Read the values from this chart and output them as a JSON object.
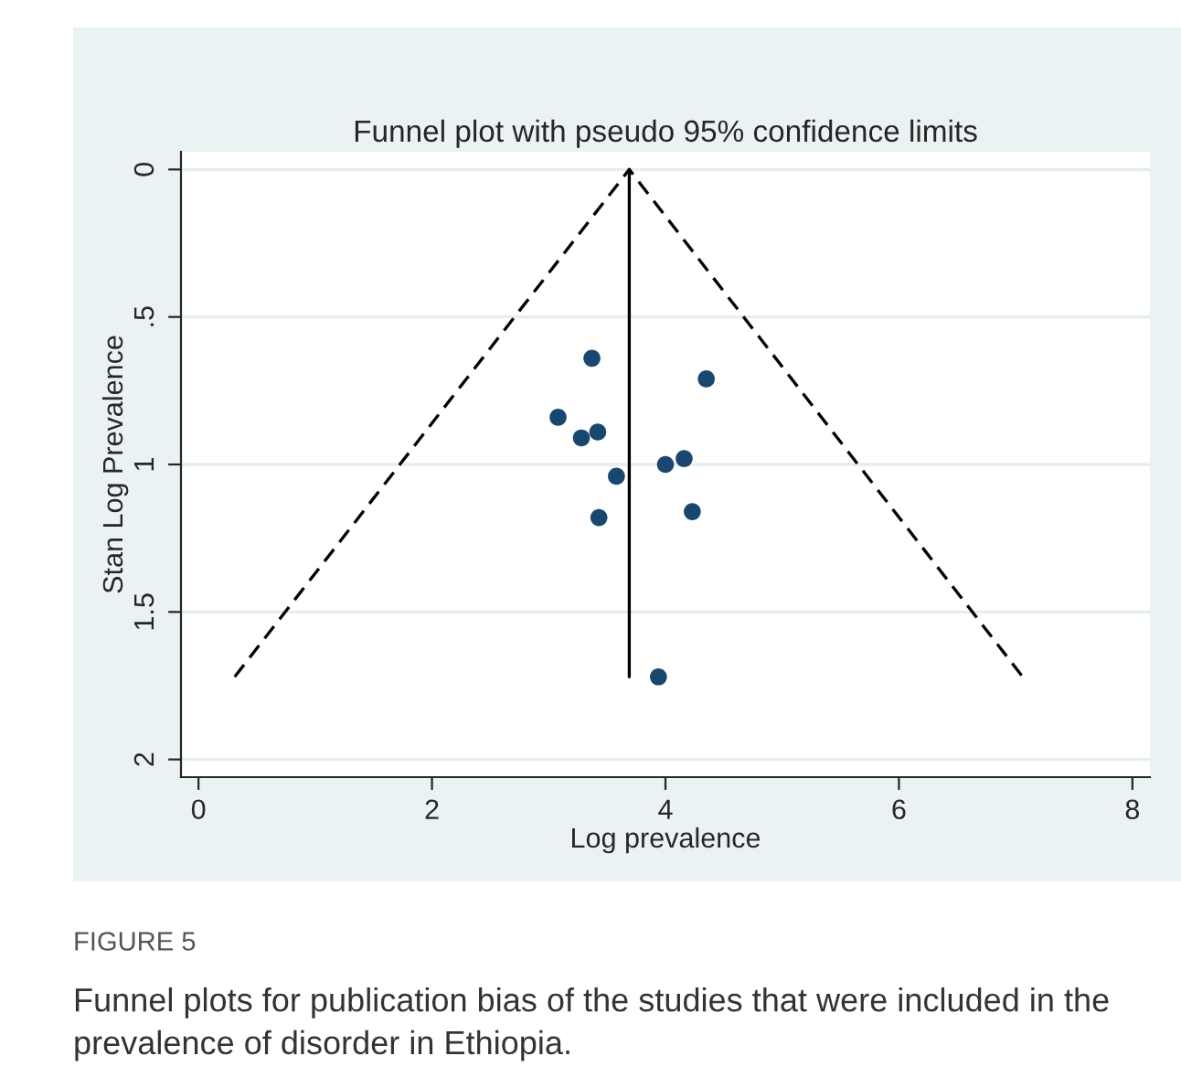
{
  "chart_data": {
    "type": "scatter",
    "title": "Funnel plot with pseudo 95% confidence limits",
    "xlabel": "Log prevalence",
    "ylabel": "Stan Log Prevalence",
    "series": [
      {
        "color": "#1a476f",
        "marker": "circle",
        "x": [
          3.37,
          4.35,
          3.08,
          3.28,
          3.42,
          3.58,
          4.0,
          4.16,
          3.43,
          4.23,
          3.94
        ],
        "values": [
          0.64,
          0.71,
          0.84,
          0.91,
          0.89,
          1.04,
          1.0,
          0.98,
          1.18,
          1.16,
          1.72
        ]
      },
      {
        "type": "line",
        "color": "#000000",
        "line_style": "dashed",
        "x": [
          0.31,
          3.69,
          7.06
        ],
        "values": [
          1.72,
          0,
          1.72
        ]
      },
      {
        "type": "line",
        "color": "#000000",
        "line_style": "solid",
        "x": [
          3.69,
          3.69
        ],
        "values": [
          0,
          1.72
        ]
      }
    ],
    "xlim": [
      -0.15,
      8.15
    ],
    "ylim": [
      2.06,
      -0.06
    ],
    "xticks": [
      0,
      2,
      4,
      6,
      8
    ],
    "yticks": [
      0,
      {
        "value": 0.5,
        "label": ".5"
      },
      1,
      {
        "value": 1.5,
        "label": "1.5"
      },
      2
    ],
    "grid": "y",
    "legend": false,
    "annotations": [
      "FIGURE 5",
      "Funnel plots for publication bias of the studies that were included in the prevalence of disorder in Ethiopia."
    ]
  }
}
